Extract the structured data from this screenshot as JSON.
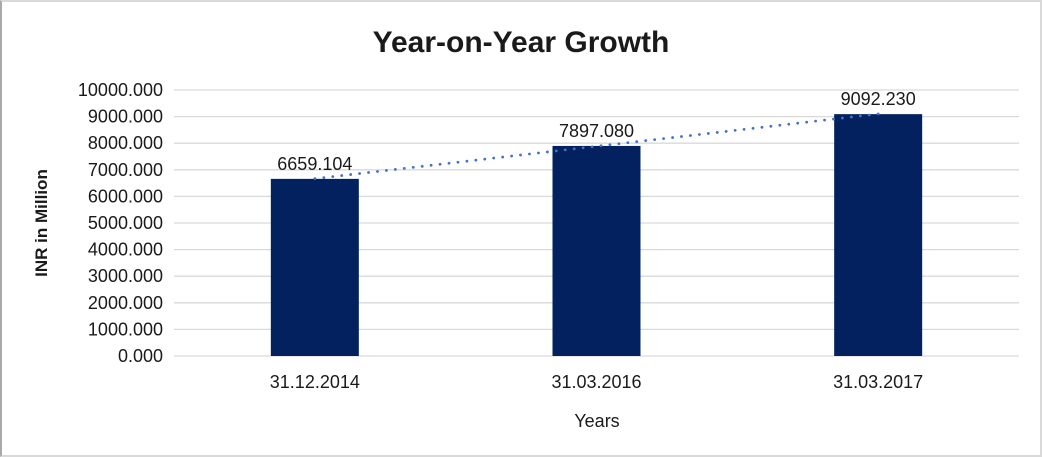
{
  "window": {
    "background": "#ffffff",
    "frame_border_color": "#d9d9d9",
    "frame_border_left_color": "#a9a9a9"
  },
  "chart_data": {
    "type": "bar",
    "title": "Year-on-Year Growth",
    "xlabel": "Years",
    "ylabel": "INR in Million",
    "categories": [
      "31.12.2014",
      "31.03.2016",
      "31.03.2017"
    ],
    "values": [
      6659.104,
      7897.08,
      9092.23
    ],
    "data_labels": [
      "6659.104",
      "7897.080",
      "9092.230"
    ],
    "series": [
      {
        "name": "INR in Million",
        "values": [
          6659.104,
          7897.08,
          9092.23
        ]
      }
    ],
    "ylim": [
      0,
      10000
    ],
    "ytick_step": 1000,
    "ytick_labels": [
      "0.000",
      "1000.000",
      "2000.000",
      "3000.000",
      "4000.000",
      "5000.000",
      "6000.000",
      "7000.000",
      "8000.000",
      "9000.000",
      "10000.000"
    ],
    "grid": true,
    "legend_position": "none",
    "bar_color": "#02215E",
    "gridline_color": "#D9D9D9",
    "axis_text_color": "#1a1a1a",
    "trendline": {
      "type": "linear",
      "style": "dotted",
      "color": "#4472C4"
    }
  }
}
